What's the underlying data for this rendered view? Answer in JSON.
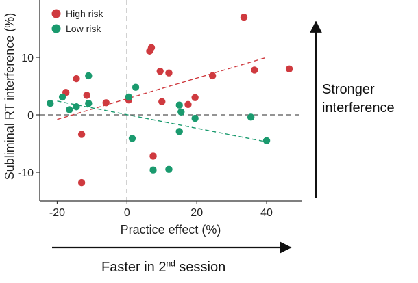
{
  "chart_data": {
    "type": "scatter",
    "title": "",
    "xlabel": "Practice effect (%)",
    "ylabel": "Subliminal RT interference (%)",
    "xlim": [
      -25,
      50
    ],
    "ylim": [
      -15,
      20
    ],
    "xticks": [
      "-20",
      "0",
      "20",
      "40"
    ],
    "xtick_values": [
      -20,
      0,
      20,
      40
    ],
    "yticks": [
      "-10",
      "0",
      "10"
    ],
    "ytick_values": [
      -10,
      0,
      10
    ],
    "legend_position": "top-left",
    "reference_lines": {
      "x": 0,
      "y": 0
    },
    "series": [
      {
        "name": "High risk",
        "color": "#cf3a3f",
        "points": [
          [
            -17.5,
            3.9
          ],
          [
            -14.5,
            6.3
          ],
          [
            -13,
            -3.4
          ],
          [
            -13,
            -11.8
          ],
          [
            -11.5,
            3.4
          ],
          [
            -6,
            2.1
          ],
          [
            0.5,
            2.6
          ],
          [
            6.5,
            11.1
          ],
          [
            7,
            11.7
          ],
          [
            7.5,
            -7.2
          ],
          [
            9.5,
            7.6
          ],
          [
            10,
            2.3
          ],
          [
            12,
            7.3
          ],
          [
            17.5,
            1.8
          ],
          [
            19.5,
            3.0
          ],
          [
            24.5,
            6.8
          ],
          [
            33.5,
            17.0
          ],
          [
            36.5,
            7.8
          ],
          [
            46.5,
            8.0
          ]
        ],
        "fit": [
          [
            -20,
            -0.8
          ],
          [
            40,
            10.0
          ]
        ]
      },
      {
        "name": "Low risk",
        "color": "#1a9a6e",
        "points": [
          [
            -22,
            2.0
          ],
          [
            -18.5,
            3.1
          ],
          [
            -16.5,
            0.9
          ],
          [
            -14.5,
            1.4
          ],
          [
            -11,
            6.8
          ],
          [
            -11,
            2.0
          ],
          [
            0.5,
            3.1
          ],
          [
            1.5,
            -4.1
          ],
          [
            2.5,
            4.8
          ],
          [
            7.5,
            -9.6
          ],
          [
            12,
            -9.5
          ],
          [
            15,
            -2.9
          ],
          [
            15,
            1.7
          ],
          [
            15.5,
            0.5
          ],
          [
            19.5,
            -0.6
          ],
          [
            35.5,
            -0.4
          ],
          [
            40,
            -4.5
          ]
        ],
        "fit": [
          [
            -20,
            2.4
          ],
          [
            40,
            -4.7
          ]
        ]
      }
    ]
  },
  "annotations": {
    "right_line1": "Stronger",
    "right_line2": "interference",
    "bottom_text": "Faster in 2",
    "bottom_sup": "nd",
    "bottom_rest": " session"
  }
}
